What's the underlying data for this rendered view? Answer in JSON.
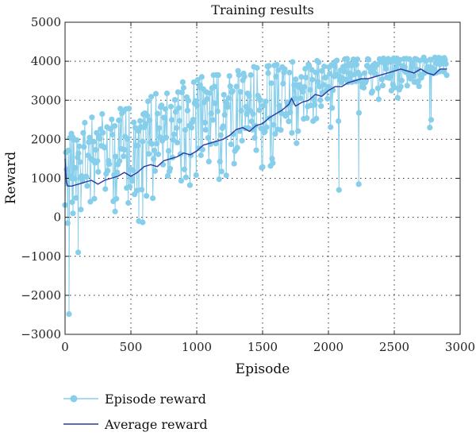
{
  "chart_data": {
    "type": "line",
    "title": "Training results",
    "xlabel": "Episode",
    "ylabel": "Reward",
    "xlim": [
      0,
      3000
    ],
    "ylim": [
      -3000,
      5000
    ],
    "xticks": [
      0,
      500,
      1000,
      1500,
      2000,
      2500,
      3000
    ],
    "yticks": [
      -3000,
      -2000,
      -1000,
      0,
      1000,
      2000,
      3000,
      4000,
      5000
    ],
    "ytick_labels": [
      "−3000",
      "−2000",
      "−1000",
      "0",
      "1000",
      "2000",
      "3000",
      "4000",
      "5000"
    ],
    "grid": true,
    "legend_position": "below-left",
    "series": [
      {
        "name": "Episode reward",
        "color": "#87CEEB",
        "marker": "circle",
        "style": "line-with-markers",
        "trend": {
          "x": [
            0,
            100,
            250,
            500,
            750,
            1000,
            1250,
            1500,
            1750,
            2000,
            2250,
            2500,
            2750,
            2900
          ],
          "low": [
            300,
            200,
            300,
            200,
            500,
            700,
            900,
            1000,
            1400,
            1800,
            2300,
            2900,
            3200,
            3300
          ],
          "high": [
            1900,
            2500,
            2700,
            3000,
            3300,
            3600,
            3800,
            3900,
            4000,
            4050,
            4100,
            4100,
            4100,
            4100
          ]
        },
        "outliers": [
          [
            20,
            -150
          ],
          [
            30,
            -2480
          ],
          [
            60,
            100
          ],
          [
            100,
            -900
          ],
          [
            120,
            200
          ],
          [
            380,
            150
          ],
          [
            560,
            -100
          ],
          [
            590,
            -130
          ],
          [
            2080,
            700
          ],
          [
            2230,
            850
          ],
          [
            2770,
            2300
          ],
          [
            2780,
            2500
          ]
        ]
      },
      {
        "name": "Average reward",
        "color": "#2B3A9E",
        "style": "line",
        "x": [
          0,
          10,
          20,
          50,
          100,
          150,
          200,
          250,
          300,
          350,
          400,
          450,
          500,
          550,
          600,
          650,
          700,
          750,
          800,
          850,
          900,
          950,
          1000,
          1050,
          1100,
          1150,
          1200,
          1250,
          1300,
          1350,
          1400,
          1450,
          1500,
          1550,
          1600,
          1650,
          1700,
          1720,
          1750,
          1800,
          1850,
          1900,
          1950,
          2000,
          2050,
          2100,
          2150,
          2200,
          2250,
          2300,
          2350,
          2400,
          2450,
          2500,
          2550,
          2600,
          2650,
          2700,
          2750,
          2800,
          2850,
          2900
        ],
        "y": [
          1500,
          900,
          800,
          800,
          850,
          900,
          950,
          850,
          950,
          1000,
          1050,
          1150,
          1050,
          1150,
          1300,
          1350,
          1300,
          1450,
          1500,
          1550,
          1650,
          1600,
          1700,
          1850,
          1900,
          1950,
          2000,
          2100,
          2250,
          2300,
          2200,
          2350,
          2400,
          2550,
          2650,
          2750,
          2900,
          3050,
          2850,
          2950,
          3000,
          3150,
          3100,
          3250,
          3350,
          3350,
          3450,
          3500,
          3550,
          3550,
          3600,
          3650,
          3700,
          3750,
          3800,
          3750,
          3700,
          3800,
          3700,
          3650,
          3800,
          3800
        ]
      }
    ]
  }
}
